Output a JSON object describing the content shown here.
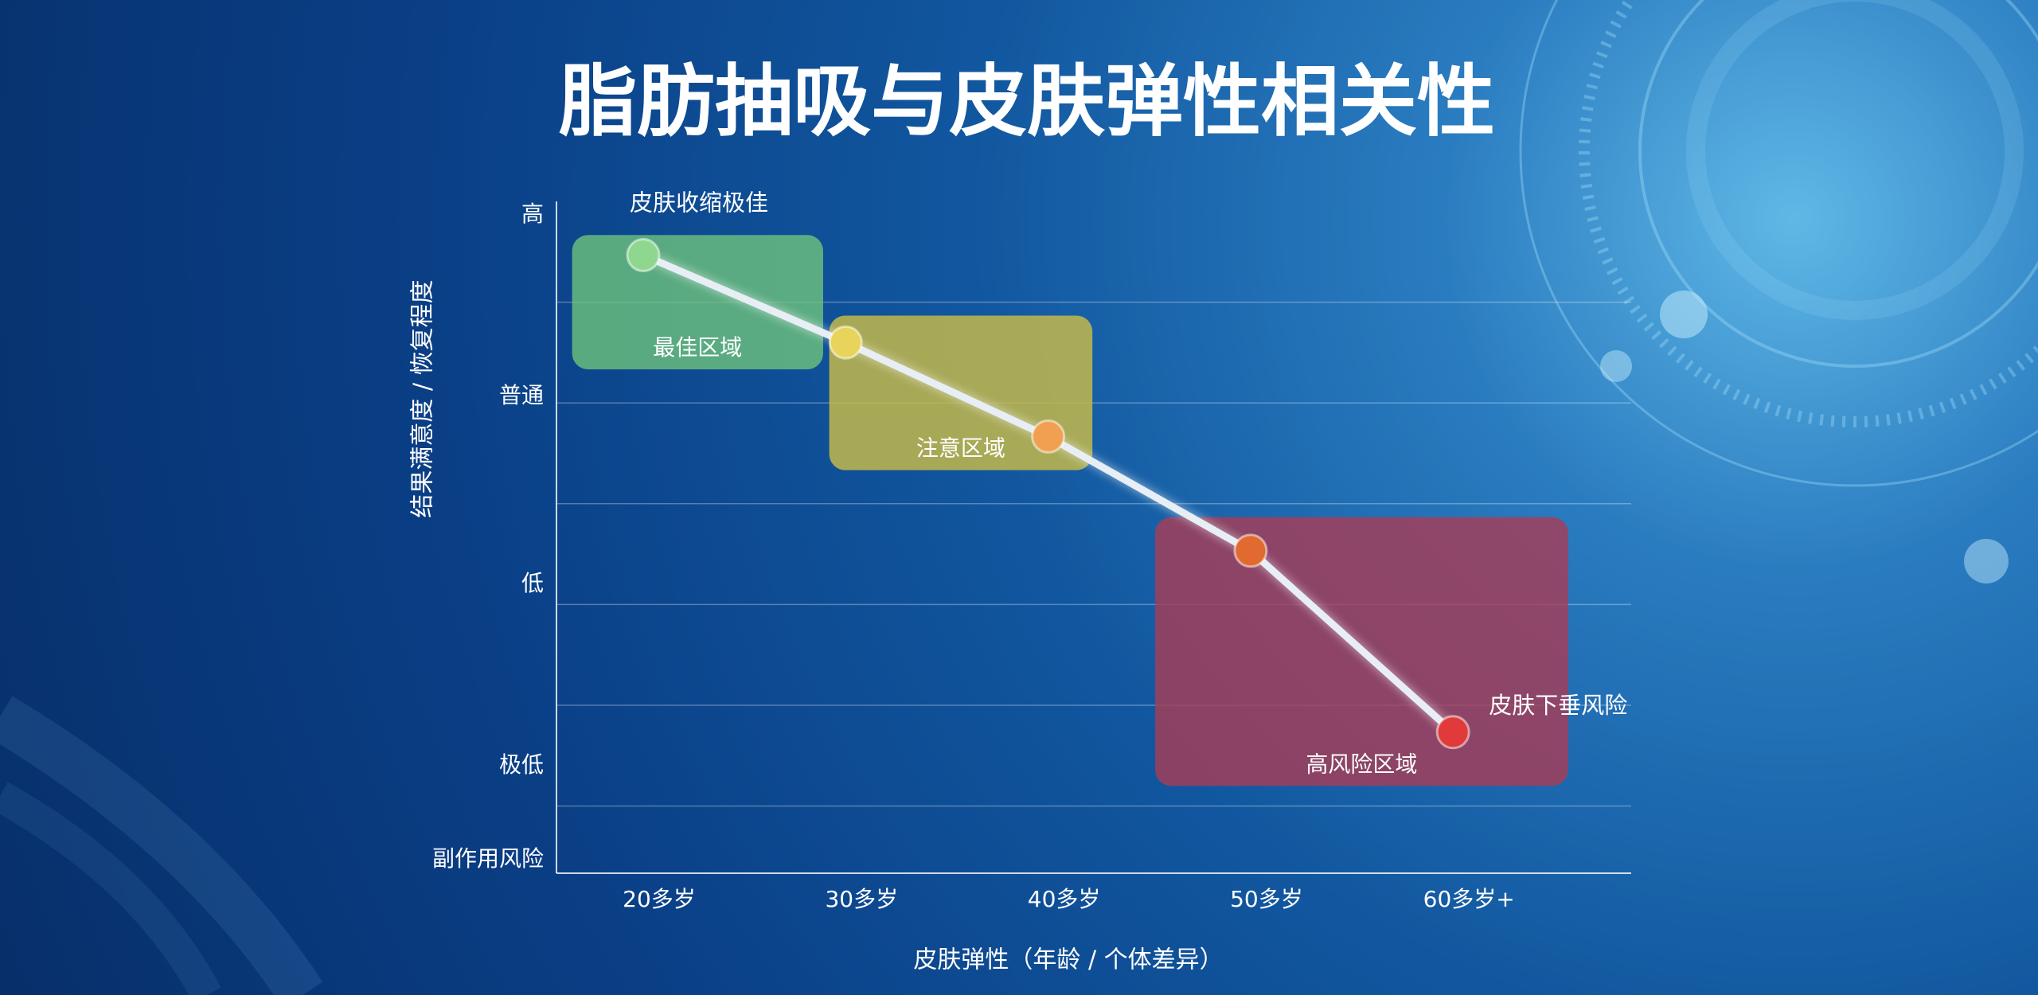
{
  "chart_data": {
    "type": "line",
    "title": "脂肪抽吸与皮肤弹性相关性",
    "x_label": "皮肤弹性（年龄 / 个体差异）",
    "y_label": "结果满意度 / 恢复程度",
    "categories": [
      "20多岁",
      "30多岁",
      "40多岁",
      "50多岁",
      "60多岁+"
    ],
    "values": [
      9.2,
      7.9,
      6.5,
      4.8,
      2.1
    ],
    "point_colors": [
      "#8fd68f",
      "#e8d45a",
      "#f0a050",
      "#e06a30",
      "#e03a3a"
    ],
    "point_labels": [
      "皮肤收缩极佳",
      null,
      null,
      null,
      "皮肤下垂风险"
    ],
    "line_color": "#e8eef5",
    "ylim": [
      0,
      10
    ],
    "yticks": [
      {
        "value": 9.8,
        "label": "高"
      },
      {
        "value": 7.1,
        "label": "普通"
      },
      {
        "value": 4.3,
        "label": "低"
      },
      {
        "value": 1.6,
        "label": "极低"
      },
      {
        "value": 0.2,
        "label": "副作用风险"
      }
    ],
    "grid_lines": [
      1,
      2.5,
      4,
      5.5,
      7,
      8.5
    ],
    "zones": [
      {
        "label": "最佳区域",
        "color": "rgba(110,195,125,0.8)",
        "x": [
          -0.43,
          0.81
        ],
        "y": [
          7.5,
          9.5
        ]
      },
      {
        "label": "注意区域",
        "color": "rgba(195,185,75,0.85)",
        "x": [
          0.84,
          2.14
        ],
        "y": [
          6.0,
          8.3
        ]
      },
      {
        "label": "高风险区域",
        "color": "rgba(170,60,85,0.8)",
        "x": [
          2.45,
          4.49
        ],
        "y": [
          1.3,
          5.3
        ]
      }
    ]
  }
}
